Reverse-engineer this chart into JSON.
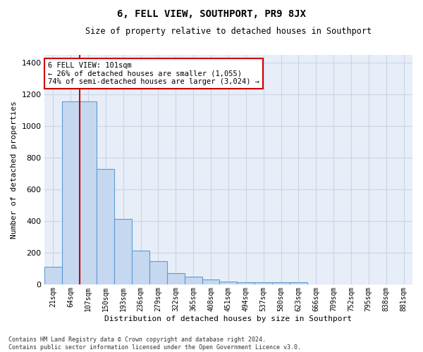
{
  "title": "6, FELL VIEW, SOUTHPORT, PR9 8JX",
  "subtitle": "Size of property relative to detached houses in Southport",
  "xlabel": "Distribution of detached houses by size in Southport",
  "ylabel": "Number of detached properties",
  "categories": [
    "21sqm",
    "64sqm",
    "107sqm",
    "150sqm",
    "193sqm",
    "236sqm",
    "279sqm",
    "322sqm",
    "365sqm",
    "408sqm",
    "451sqm",
    "494sqm",
    "537sqm",
    "580sqm",
    "623sqm",
    "666sqm",
    "709sqm",
    "752sqm",
    "795sqm",
    "838sqm",
    "881sqm"
  ],
  "bar_values": [
    110,
    1155,
    1155,
    730,
    415,
    215,
    148,
    70,
    48,
    30,
    18,
    15,
    14,
    14,
    12,
    0,
    0,
    0,
    0,
    0,
    0
  ],
  "bar_color": "#c5d8f0",
  "bar_edge_color": "#5b9bd5",
  "grid_color": "#c8d4e8",
  "bg_color": "#e8eef8",
  "vline_color": "#cc0000",
  "vline_x": 1.5,
  "annotation_text": "6 FELL VIEW: 101sqm\n← 26% of detached houses are smaller (1,055)\n74% of semi-detached houses are larger (3,024) →",
  "annotation_box_edgecolor": "#cc0000",
  "footer_line1": "Contains HM Land Registry data © Crown copyright and database right 2024.",
  "footer_line2": "Contains public sector information licensed under the Open Government Licence v3.0.",
  "ylim_max": 1450,
  "yticks": [
    0,
    200,
    400,
    600,
    800,
    1000,
    1200,
    1400
  ]
}
